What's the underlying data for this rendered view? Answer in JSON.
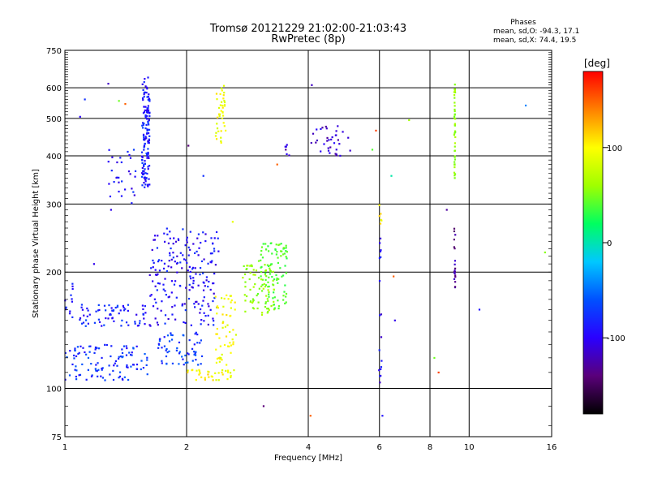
{
  "chart_data": {
    "type": "scatter",
    "title_line1": "Tromsø 20121229 21:02:00-21:03:43",
    "title_line2": "RwPretec (8p)",
    "xlabel": "Frequency [MHz]",
    "ylabel": "Stationary phase Virtual Height [km]",
    "x_scale": "log",
    "y_scale": "log",
    "xlim": [
      1,
      16
    ],
    "ylim": [
      75,
      750
    ],
    "x_ticks": [
      1,
      2,
      4,
      6,
      8,
      10,
      16
    ],
    "y_ticks": [
      75,
      100,
      200,
      300,
      400,
      500,
      600,
      750
    ],
    "grid": true,
    "stats": {
      "header": "Phases",
      "line_o": "mean, sd,O: -94.3, 17.1",
      "line_x": "mean, sd,X:  74.4, 19.5"
    },
    "colorbar": {
      "label": "[deg]",
      "range": [
        -180,
        180
      ],
      "ticks": [
        100,
        0,
        -100
      ],
      "palette": [
        "#000000",
        "#5a007a",
        "#2a00ff",
        "#0050ff",
        "#00c8ff",
        "#00ff60",
        "#a0ff00",
        "#ffff00",
        "#ff8000",
        "#ff0000"
      ]
    },
    "clusters": [
      {
        "f": [
          1.55,
          1.62
        ],
        "h": [
          330,
          640
        ],
        "phase": -108,
        "n": 140
      },
      {
        "f": [
          1.28,
          1.5
        ],
        "h": [
          300,
          420
        ],
        "phase": -110,
        "n": 30
      },
      {
        "f": [
          1.62,
          2.4
        ],
        "h": [
          145,
          260
        ],
        "phase": -112,
        "n": 200
      },
      {
        "f": [
          1.7,
          2.2
        ],
        "h": [
          115,
          140
        ],
        "phase": -95,
        "n": 60
      },
      {
        "f": [
          1.0,
          1.6
        ],
        "h": [
          105,
          130
        ],
        "phase": -100,
        "n": 110
      },
      {
        "f": [
          1.08,
          1.6
        ],
        "h": [
          145,
          165
        ],
        "phase": -105,
        "n": 70
      },
      {
        "f": [
          1.0,
          1.05
        ],
        "h": [
          150,
          190
        ],
        "phase": -110,
        "n": 12
      },
      {
        "f": [
          2.36,
          2.5
        ],
        "h": [
          430,
          610
        ],
        "phase": 95,
        "n": 40
      },
      {
        "f": [
          2.35,
          2.65
        ],
        "h": [
          105,
          175
        ],
        "phase": 95,
        "n": 70
      },
      {
        "f": [
          2.0,
          2.35
        ],
        "h": [
          105,
          112
        ],
        "phase": 105,
        "n": 20
      },
      {
        "f": [
          2.75,
          3.3
        ],
        "h": [
          155,
          210
        ],
        "phase": 55,
        "n": 80
      },
      {
        "f": [
          3.0,
          3.55
        ],
        "h": [
          160,
          240
        ],
        "phase": 30,
        "n": 90
      },
      {
        "f": [
          4.05,
          5.1
        ],
        "h": [
          400,
          480
        ],
        "phase": -125,
        "n": 35
      },
      {
        "f": [
          3.5,
          3.6
        ],
        "h": [
          400,
          440
        ],
        "phase": -130,
        "n": 6
      },
      {
        "f": [
          9.18,
          9.24
        ],
        "h": [
          340,
          615
        ],
        "phase": 55,
        "n": 45
      },
      {
        "f": [
          9.18,
          9.24
        ],
        "h": [
          180,
          265
        ],
        "phase": -140,
        "n": 20
      },
      {
        "f": [
          5.98,
          6.08
        ],
        "h": [
          95,
          250
        ],
        "phase": -118,
        "n": 18
      },
      {
        "f": [
          5.98,
          6.08
        ],
        "h": [
          260,
          300
        ],
        "phase": 105,
        "n": 6
      }
    ],
    "scatter_points": [
      {
        "f": 1.28,
        "h": 615,
        "phase": -130
      },
      {
        "f": 1.12,
        "h": 560,
        "phase": -100
      },
      {
        "f": 1.36,
        "h": 555,
        "phase": 40
      },
      {
        "f": 1.41,
        "h": 545,
        "phase": 150
      },
      {
        "f": 1.09,
        "h": 505,
        "phase": -115
      },
      {
        "f": 2.02,
        "h": 425,
        "phase": -150
      },
      {
        "f": 2.2,
        "h": 355,
        "phase": -100
      },
      {
        "f": 4.08,
        "h": 610,
        "phase": -130
      },
      {
        "f": 5.88,
        "h": 465,
        "phase": 160
      },
      {
        "f": 5.76,
        "h": 415,
        "phase": 30
      },
      {
        "f": 6.42,
        "h": 355,
        "phase": -20
      },
      {
        "f": 7.1,
        "h": 495,
        "phase": 60
      },
      {
        "f": 13.8,
        "h": 540,
        "phase": -70
      },
      {
        "f": 15.4,
        "h": 225,
        "phase": 50
      },
      {
        "f": 10.6,
        "h": 160,
        "phase": -110
      },
      {
        "f": 8.8,
        "h": 290,
        "phase": -140
      },
      {
        "f": 3.1,
        "h": 90,
        "phase": -150
      },
      {
        "f": 4.05,
        "h": 85,
        "phase": 150
      },
      {
        "f": 6.1,
        "h": 85,
        "phase": -110
      },
      {
        "f": 6.5,
        "h": 195,
        "phase": 150
      },
      {
        "f": 6.55,
        "h": 150,
        "phase": -120
      },
      {
        "f": 8.4,
        "h": 110,
        "phase": 160
      },
      {
        "f": 8.2,
        "h": 120,
        "phase": 40
      },
      {
        "f": 2.6,
        "h": 270,
        "phase": 90
      },
      {
        "f": 1.18,
        "h": 210,
        "phase": -120
      },
      {
        "f": 3.35,
        "h": 380,
        "phase": 150
      },
      {
        "f": 1.3,
        "h": 290,
        "phase": -120
      }
    ]
  }
}
